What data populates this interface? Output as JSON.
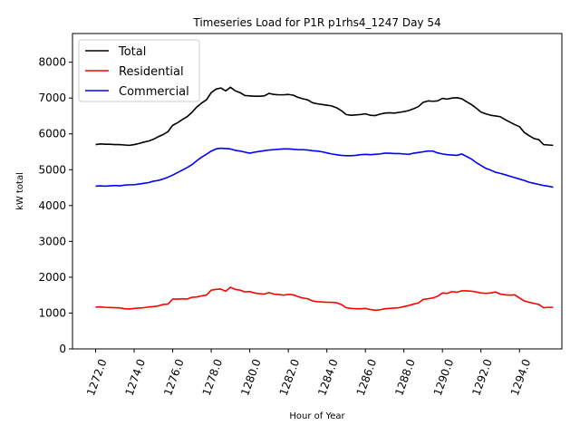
{
  "chart_data": {
    "type": "line",
    "title": "Timeseries Load for P1R p1rhs4_1247  Day 54",
    "xlabel": "Hour of Year",
    "ylabel": "kW total",
    "xlim": [
      1270.8,
      1296.2
    ],
    "ylim": [
      0,
      8800
    ],
    "xticks": [
      1272,
      1274,
      1276,
      1278,
      1280,
      1282,
      1284,
      1286,
      1288,
      1290,
      1292,
      1294
    ],
    "xtick_labels": [
      "1272.0",
      "1274.0",
      "1276.0",
      "1278.0",
      "1280.0",
      "1282.0",
      "1284.0",
      "1286.0",
      "1288.0",
      "1290.0",
      "1292.0",
      "1294.0"
    ],
    "yticks": [
      0,
      1000,
      2000,
      3000,
      4000,
      5000,
      6000,
      7000,
      8000
    ],
    "ytick_labels": [
      "0",
      "1000",
      "2000",
      "3000",
      "4000",
      "5000",
      "6000",
      "7000",
      "8000"
    ],
    "legend_position": "top-left",
    "x": [
      1272.0,
      1272.25,
      1272.5,
      1272.75,
      1273.0,
      1273.25,
      1273.5,
      1273.75,
      1274.0,
      1274.25,
      1274.5,
      1274.75,
      1275.0,
      1275.25,
      1275.5,
      1275.75,
      1276.0,
      1276.25,
      1276.5,
      1276.75,
      1277.0,
      1277.25,
      1277.5,
      1277.75,
      1278.0,
      1278.25,
      1278.5,
      1278.75,
      1279.0,
      1279.25,
      1279.5,
      1279.75,
      1280.0,
      1280.25,
      1280.5,
      1280.75,
      1281.0,
      1281.25,
      1281.5,
      1281.75,
      1282.0,
      1282.25,
      1282.5,
      1282.75,
      1283.0,
      1283.25,
      1283.5,
      1283.75,
      1284.0,
      1284.25,
      1284.5,
      1284.75,
      1285.0,
      1285.25,
      1285.5,
      1285.75,
      1286.0,
      1286.25,
      1286.5,
      1286.75,
      1287.0,
      1287.25,
      1287.5,
      1287.75,
      1288.0,
      1288.25,
      1288.5,
      1288.75,
      1289.0,
      1289.25,
      1289.5,
      1289.75,
      1290.0,
      1290.25,
      1290.5,
      1290.75,
      1291.0,
      1291.25,
      1291.5,
      1291.75,
      1292.0,
      1292.25,
      1292.5,
      1292.75,
      1293.0,
      1293.25,
      1293.5,
      1293.75,
      1294.0,
      1294.25,
      1294.5,
      1294.75,
      1295.0,
      1295.25,
      1295.5,
      1295.75
    ],
    "series": [
      {
        "name": "Total",
        "color": "#000000",
        "values": [
          5700,
          5720,
          5710,
          5710,
          5700,
          5700,
          5690,
          5680,
          5700,
          5730,
          5770,
          5800,
          5850,
          5920,
          5980,
          6060,
          6240,
          6310,
          6400,
          6480,
          6600,
          6750,
          6860,
          6950,
          7150,
          7250,
          7280,
          7200,
          7300,
          7200,
          7150,
          7070,
          7060,
          7050,
          7050,
          7060,
          7130,
          7100,
          7090,
          7090,
          7100,
          7080,
          7020,
          6980,
          6950,
          6870,
          6840,
          6820,
          6800,
          6780,
          6730,
          6650,
          6540,
          6520,
          6530,
          6540,
          6560,
          6520,
          6510,
          6550,
          6580,
          6590,
          6580,
          6600,
          6620,
          6650,
          6700,
          6760,
          6880,
          6920,
          6910,
          6920,
          6990,
          6970,
          7000,
          7010,
          6980,
          6900,
          6820,
          6720,
          6610,
          6560,
          6520,
          6500,
          6480,
          6400,
          6330,
          6260,
          6200,
          6040,
          5950,
          5870,
          5840,
          5700,
          5690,
          5680
        ]
      },
      {
        "name": "Residential",
        "color": "#ff0000",
        "values": [
          1165,
          1170,
          1160,
          1155,
          1150,
          1145,
          1120,
          1110,
          1130,
          1140,
          1150,
          1170,
          1180,
          1200,
          1240,
          1250,
          1390,
          1390,
          1400,
          1390,
          1440,
          1450,
          1480,
          1500,
          1640,
          1660,
          1670,
          1610,
          1720,
          1660,
          1640,
          1590,
          1600,
          1560,
          1540,
          1530,
          1570,
          1530,
          1520,
          1500,
          1520,
          1510,
          1460,
          1420,
          1400,
          1340,
          1320,
          1310,
          1300,
          1300,
          1290,
          1240,
          1150,
          1130,
          1120,
          1120,
          1130,
          1100,
          1080,
          1090,
          1120,
          1130,
          1140,
          1150,
          1180,
          1210,
          1250,
          1280,
          1380,
          1400,
          1420,
          1470,
          1560,
          1550,
          1600,
          1580,
          1620,
          1620,
          1610,
          1590,
          1560,
          1550,
          1560,
          1590,
          1530,
          1510,
          1500,
          1510,
          1420,
          1340,
          1300,
          1270,
          1240,
          1150,
          1160,
          1160
        ]
      },
      {
        "name": "Commercial",
        "color": "#0000ff",
        "values": [
          4540,
          4550,
          4540,
          4550,
          4560,
          4550,
          4570,
          4580,
          4580,
          4600,
          4620,
          4640,
          4680,
          4700,
          4740,
          4790,
          4850,
          4920,
          4990,
          5060,
          5140,
          5250,
          5350,
          5430,
          5520,
          5580,
          5600,
          5590,
          5580,
          5540,
          5520,
          5490,
          5460,
          5490,
          5510,
          5530,
          5550,
          5560,
          5570,
          5580,
          5580,
          5570,
          5560,
          5560,
          5550,
          5530,
          5520,
          5500,
          5470,
          5440,
          5420,
          5400,
          5390,
          5390,
          5400,
          5420,
          5430,
          5420,
          5430,
          5440,
          5460,
          5460,
          5450,
          5450,
          5440,
          5430,
          5460,
          5480,
          5500,
          5520,
          5520,
          5470,
          5440,
          5420,
          5410,
          5400,
          5440,
          5370,
          5300,
          5200,
          5120,
          5040,
          4990,
          4930,
          4900,
          4860,
          4820,
          4780,
          4740,
          4700,
          4650,
          4620,
          4590,
          4560,
          4540,
          4510
        ]
      }
    ]
  }
}
